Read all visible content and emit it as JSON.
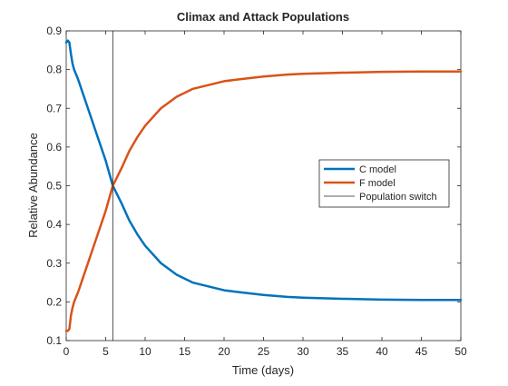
{
  "chart_data": {
    "type": "line",
    "title": "Climax and Attack Populations",
    "xlabel": "Time (days)",
    "ylabel": "Relative Abundance",
    "xlim": [
      0,
      50
    ],
    "ylim": [
      0.1,
      0.9
    ],
    "xticks": [
      0,
      5,
      10,
      15,
      20,
      25,
      30,
      35,
      40,
      45,
      50
    ],
    "yticks": [
      0.1,
      0.2,
      0.3,
      0.4,
      0.5,
      0.6,
      0.7,
      0.8,
      0.9
    ],
    "xtick_labels": [
      "0",
      "5",
      "10",
      "15",
      "20",
      "25",
      "30",
      "35",
      "40",
      "45",
      "50"
    ],
    "ytick_labels": [
      "0.1",
      "0.2",
      "0.3",
      "0.4",
      "0.5",
      "0.6",
      "0.7",
      "0.8",
      "0.9"
    ],
    "grid": false,
    "legend_position": "right",
    "series": [
      {
        "name": "C model",
        "color": "#0072BD",
        "width": 2.5,
        "x": [
          0,
          0.2,
          0.4,
          0.6,
          0.8,
          1,
          1.5,
          2,
          3,
          4,
          5,
          5.9,
          7,
          8,
          9,
          10,
          12,
          14,
          16,
          18,
          20,
          22,
          25,
          28,
          30,
          35,
          40,
          45,
          50
        ],
        "y": [
          0.87,
          0.875,
          0.87,
          0.84,
          0.815,
          0.8,
          0.775,
          0.745,
          0.685,
          0.625,
          0.565,
          0.5,
          0.455,
          0.41,
          0.375,
          0.345,
          0.3,
          0.27,
          0.25,
          0.24,
          0.23,
          0.225,
          0.218,
          0.213,
          0.211,
          0.208,
          0.206,
          0.205,
          0.205
        ]
      },
      {
        "name": "F model",
        "color": "#D95319",
        "width": 2.5,
        "x": [
          0,
          0.2,
          0.4,
          0.6,
          0.8,
          1,
          1.5,
          2,
          3,
          4,
          5,
          5.9,
          7,
          8,
          9,
          10,
          12,
          14,
          16,
          18,
          20,
          22,
          25,
          28,
          30,
          35,
          40,
          45,
          50
        ],
        "y": [
          0.125,
          0.125,
          0.13,
          0.165,
          0.185,
          0.2,
          0.225,
          0.255,
          0.315,
          0.375,
          0.435,
          0.5,
          0.545,
          0.59,
          0.625,
          0.655,
          0.7,
          0.73,
          0.75,
          0.76,
          0.77,
          0.775,
          0.782,
          0.787,
          0.789,
          0.792,
          0.794,
          0.795,
          0.795
        ]
      },
      {
        "name": "Population switch",
        "color": "#262626",
        "width": 0.8,
        "x": [
          5.9,
          5.9
        ],
        "y": [
          0.1,
          0.9
        ]
      }
    ]
  }
}
